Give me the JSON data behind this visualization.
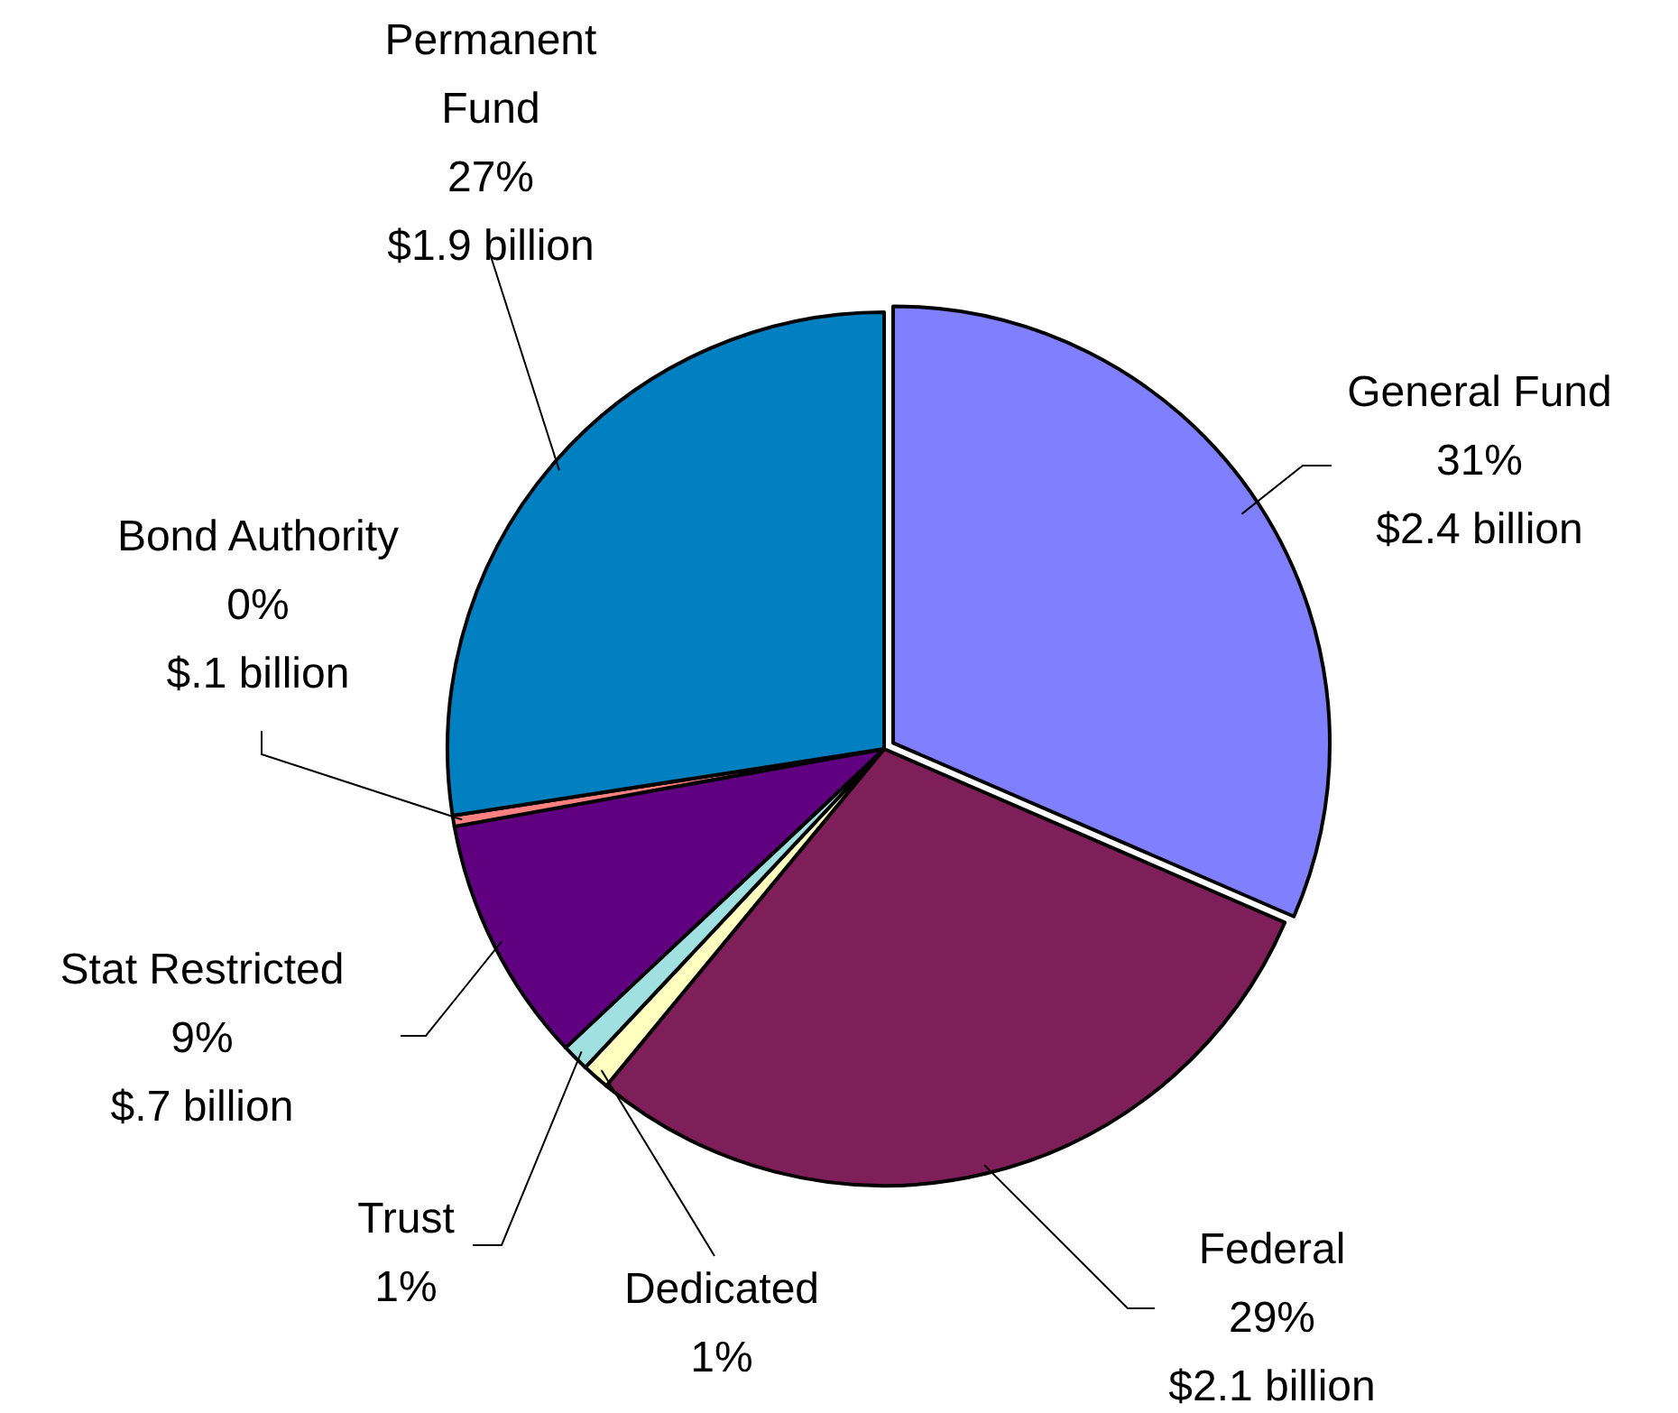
{
  "chart_data": {
    "type": "pie",
    "categories": [
      "General Fund",
      "Federal",
      "Dedicated",
      "Trust",
      "Stat Restricted",
      "Bond Authority",
      "Permanent Fund"
    ],
    "values": [
      31,
      29,
      1,
      1,
      9,
      0.4,
      27
    ],
    "colors": [
      "#8080ff",
      "#7f1f5a",
      "#ffffc0",
      "#a0e0e0",
      "#600080",
      "#ff8080",
      "#0080c0"
    ],
    "value_labels": [
      "31%\n$2.4 billion",
      "29%\n$2.1 billion",
      "1%",
      "1%",
      "9%\n$.7 billion",
      "0%\n$.1 billion",
      "27%\n$1.9 billion"
    ]
  }
}
